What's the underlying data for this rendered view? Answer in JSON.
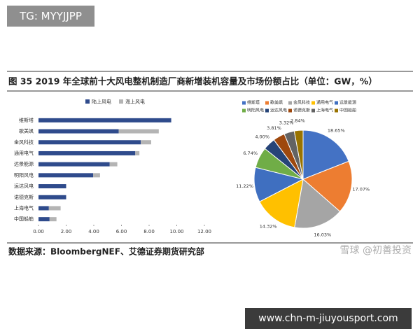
{
  "overlay_tag": "TG: MYYJJPP",
  "figure_title": "图 35 2019 年全球前十大风电整机制造厂商新增装机容量及市场份额占比（单位：GW，%）",
  "source": "数据来源：BloombergNEF、艾德证券期货研究部",
  "watermark": "雪球 @初善投资",
  "overlay_url": "www.chn-m-jiuyousport.com",
  "chart_data": [
    {
      "type": "hbar-stacked",
      "categories": [
        "维斯塔",
        "歌美飒",
        "金风科技",
        "通用电气",
        "远景能源",
        "明阳风电",
        "运达风电",
        "诺德克斯",
        "上海电气",
        "中国船舶"
      ],
      "series": [
        {
          "name": "陆上风电",
          "color": "#2f4b8c",
          "values": [
            9.6,
            5.8,
            7.4,
            7.0,
            5.15,
            3.95,
            2.0,
            2.0,
            0.75,
            0.8
          ]
        },
        {
          "name": "海上风电",
          "color": "#b4b4b4",
          "values": [
            0,
            2.9,
            0.75,
            0.3,
            0.55,
            0.5,
            0,
            0,
            0.85,
            0.5
          ]
        }
      ],
      "xlim": [
        0,
        12
      ],
      "xticks": [
        {
          "value": 0,
          "label": "0.00"
        },
        {
          "value": 2,
          "label": "2.00"
        },
        {
          "value": 4,
          "label": "4.00"
        },
        {
          "value": 6,
          "label": "6.00"
        },
        {
          "value": 8,
          "label": "8.00"
        },
        {
          "value": 10,
          "label": "10.00"
        },
        {
          "value": 12,
          "label": "12.00"
        }
      ],
      "legend": "top"
    },
    {
      "type": "pie",
      "categories": [
        "维斯塔",
        "歌美飒",
        "金风科技",
        "通用电气",
        "远景能源",
        "明阳风电",
        "运达风电",
        "诺德克斯",
        "上海电气",
        "中国船舶"
      ],
      "values": [
        18.65,
        17.07,
        16.03,
        14.32,
        11.22,
        6.74,
        4.0,
        3.81,
        3.32,
        2.84
      ],
      "value_labels": [
        "18.65%",
        "17.07%",
        "16.03%",
        "14.32%",
        "11.22%",
        "6.74%",
        "4.00%",
        "3.81%",
        "3.32%",
        "2.84%"
      ],
      "colors": [
        "#4472c4",
        "#ed7d31",
        "#a5a5a5",
        "#ffc000",
        "#3f6fc0",
        "#70ad47",
        "#264478",
        "#9e480e",
        "#636363",
        "#997300"
      ],
      "legend": "top"
    }
  ]
}
